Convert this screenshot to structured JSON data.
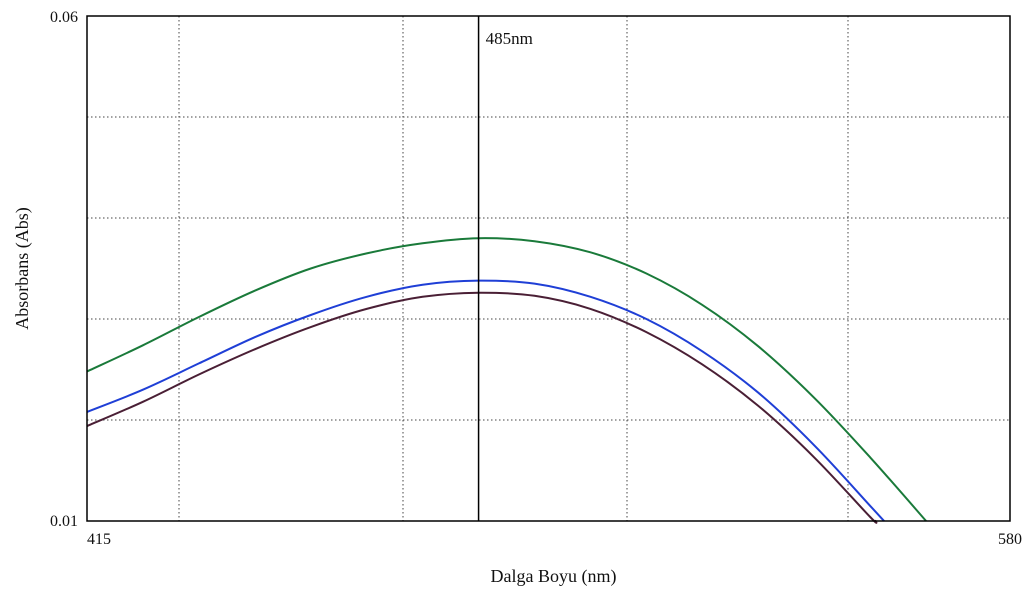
{
  "chart_data": {
    "type": "line",
    "xlabel": "Dalga Boyu (nm)",
    "ylabel": "Absorbans (Abs)",
    "xlim": [
      415,
      580
    ],
    "ylim": [
      0.01,
      0.06
    ],
    "x_tick_labels": [
      "415",
      "580"
    ],
    "y_tick_labels": [
      "0.06",
      "0.01"
    ],
    "grid": true,
    "grid_style": "dotted",
    "annotation": {
      "x": 485,
      "label": "485nm"
    },
    "series": [
      {
        "color": "#1a7a3a",
        "points": [
          [
            415,
            0.0248
          ],
          [
            425,
            0.0274
          ],
          [
            435,
            0.0302
          ],
          [
            445,
            0.0328
          ],
          [
            455,
            0.035
          ],
          [
            465,
            0.0365
          ],
          [
            475,
            0.0375
          ],
          [
            485,
            0.038
          ],
          [
            495,
            0.0377
          ],
          [
            505,
            0.0366
          ],
          [
            515,
            0.0345
          ],
          [
            525,
            0.0314
          ],
          [
            535,
            0.0273
          ],
          [
            545,
            0.0222
          ],
          [
            555,
            0.0163
          ],
          [
            565,
            0.01
          ]
        ]
      },
      {
        "color": "#1f3fd6",
        "points": [
          [
            415,
            0.0208
          ],
          [
            425,
            0.023
          ],
          [
            435,
            0.0256
          ],
          [
            445,
            0.0282
          ],
          [
            455,
            0.0304
          ],
          [
            465,
            0.0322
          ],
          [
            475,
            0.0334
          ],
          [
            485,
            0.0338
          ],
          [
            495,
            0.0335
          ],
          [
            505,
            0.0322
          ],
          [
            515,
            0.03
          ],
          [
            525,
            0.0268
          ],
          [
            535,
            0.0227
          ],
          [
            545,
            0.0175
          ],
          [
            555,
            0.0115
          ],
          [
            557.5,
            0.01
          ]
        ]
      },
      {
        "color": "#4a1f35",
        "points": [
          [
            415,
            0.0194
          ],
          [
            425,
            0.0218
          ],
          [
            435,
            0.0245
          ],
          [
            445,
            0.027
          ],
          [
            455,
            0.0292
          ],
          [
            465,
            0.031
          ],
          [
            475,
            0.0322
          ],
          [
            485,
            0.0326
          ],
          [
            495,
            0.0323
          ],
          [
            505,
            0.031
          ],
          [
            515,
            0.0287
          ],
          [
            525,
            0.0255
          ],
          [
            535,
            0.0214
          ],
          [
            545,
            0.0163
          ],
          [
            555,
            0.0104
          ],
          [
            556,
            0.01
          ]
        ]
      }
    ]
  }
}
